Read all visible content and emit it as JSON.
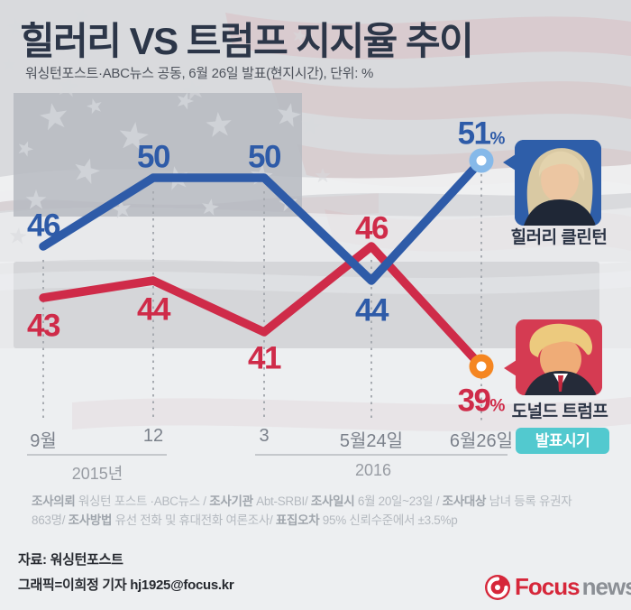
{
  "header": {
    "title": "힐러리 VS 트럼프 지지율 추이",
    "subtitle": "워싱턴포스트·ABC뉴스 공동, 6월 26일 발표(현지시간), 단위: %"
  },
  "chart_data": {
    "type": "line",
    "categories": [
      "9월",
      "12",
      "3",
      "5월24일",
      "6월26일"
    ],
    "series": [
      {
        "name": "힐러리 클린턴",
        "color": "#2e5ba8",
        "marker_color": "#86b9e9",
        "values": [
          46,
          50,
          50,
          44,
          51
        ]
      },
      {
        "name": "도널드 트럼프",
        "color": "#cf2b49",
        "marker_color": "#f58621",
        "values": [
          43,
          44,
          41,
          46,
          39
        ]
      }
    ],
    "year_groups": [
      {
        "label": "2015년"
      },
      {
        "label": "2016"
      }
    ],
    "unit": "%",
    "annotation": "발표시기",
    "ylim": [
      35,
      55
    ],
    "grid": "vertical-dotted",
    "legend_position": "right-cards"
  },
  "notes": {
    "l1k1": "조사의뢰",
    "l1v1": " 워싱턴 포스트 ·ABC뉴스 / ",
    "l1k2": "조사기관",
    "l1v2": " Abt-SRBI/ ",
    "l1k3": "조사일시",
    "l1v3": " 6월 20일~23일 / ",
    "l1k4": "조사대상",
    "l1v4": " 남녀 등록 유권자",
    "l2v0": "863명/ ",
    "l2k1": "조사방법",
    "l2v1": " 유선 전화 및 휴대전화 여론조사/ ",
    "l2k2": "표집오차",
    "l2v2": " 95% 신뢰수준에서 ±3.5%p"
  },
  "source": {
    "line1": "자료: 워싱턴포스트",
    "line2": "그래픽=이희정 기자 hj1925@focus.kr"
  },
  "logo": {
    "brand": "Focus",
    "suffix": "news"
  },
  "colors": {
    "hillary_blue": "#2e5ba8",
    "trump_red": "#cf2b49",
    "badge_cyan": "#52c9cf",
    "marker_blue": "#86b9e9",
    "marker_orange": "#f58621",
    "logo_red": "#d6273a",
    "title_navy": "#2c3648"
  }
}
